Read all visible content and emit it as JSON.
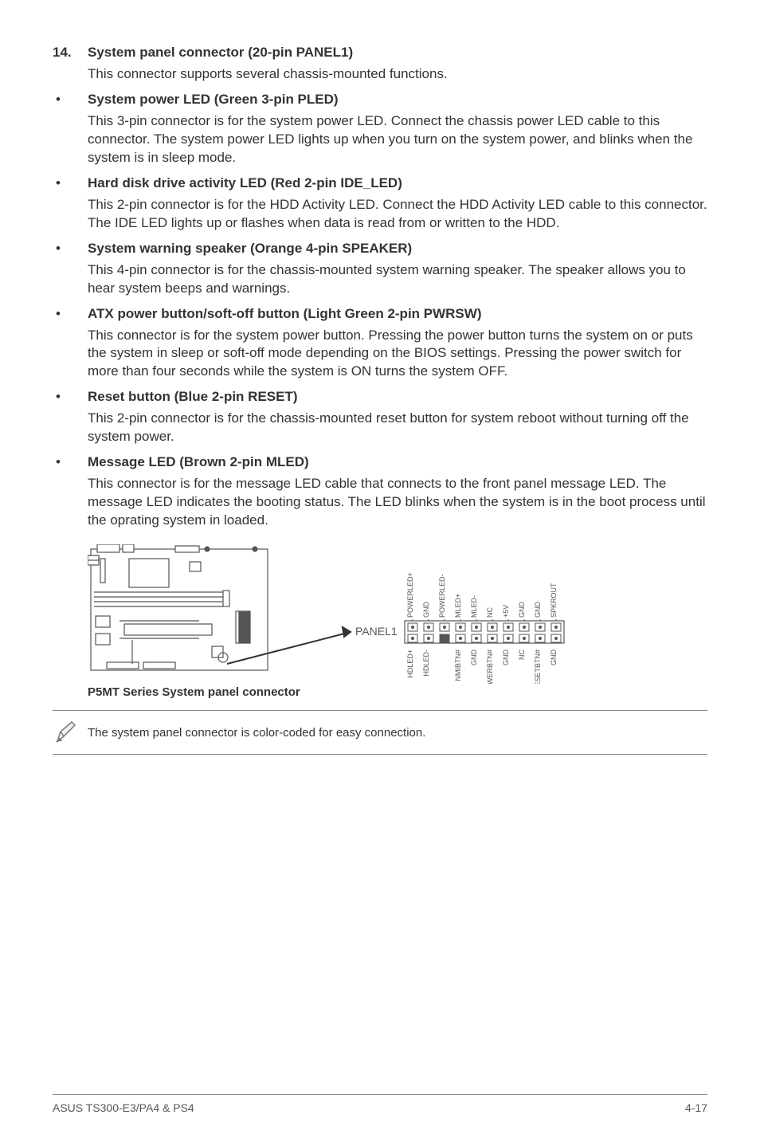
{
  "section": {
    "number": "14.",
    "title": "System panel connector (20-pin PANEL1)",
    "intro": "This connector supports several chassis-mounted functions."
  },
  "bullets": [
    {
      "title": "System power LED (Green 3-pin PLED)",
      "body": "This 3-pin connector is for the system power LED. Connect the chassis power LED cable to this connector. The system power LED lights up when you turn on the system power, and blinks when the system is in sleep mode."
    },
    {
      "title": "Hard disk drive activity LED (Red 2-pin IDE_LED)",
      "body": "This 2-pin connector is for the HDD Activity LED. Connect the HDD Activity LED cable to this connector. The IDE LED lights up or flashes when data is read from or written to the HDD."
    },
    {
      "title": "System warning speaker (Orange 4-pin SPEAKER)",
      "body": "This 4-pin connector is for the chassis-mounted system warning speaker. The speaker allows you to hear system beeps and warnings."
    },
    {
      "title": "ATX power button/soft-off button (Light Green 2-pin PWRSW)",
      "body": "This connector is for the system power button. Pressing the power button turns the system on or puts the system in sleep or soft-off mode depending on the BIOS settings. Pressing the power switch for more than four seconds while the system is ON turns the system OFF."
    },
    {
      "title": "Reset button (Blue 2-pin RESET)",
      "body": "This 2-pin connector is for the chassis-mounted reset button for system reboot without turning off the system power."
    },
    {
      "title": "Message LED (Brown 2-pin MLED)",
      "body": "This connector is for the message LED cable that connects to the front panel message LED. The message LED indicates the booting status. The LED blinks when the system is in the boot process until the oprating system in loaded."
    }
  ],
  "diagram": {
    "conn_label": "PANEL1",
    "caption": "P5MT Series System panel connector",
    "top_pins": [
      "POWERLED+",
      "GND",
      "POWERLED-",
      "MLED+",
      "MLED-",
      "NC",
      "+5V",
      "GND",
      "GND",
      "SPKROUT"
    ],
    "bottom_pins": [
      "HDLED+",
      "HDLED-",
      "",
      "NMIBTN#",
      "GND",
      "POWERBTN#",
      "GND",
      "NC",
      "RESETBTN#",
      "GND"
    ],
    "stroke": "#555555",
    "fill_light": "#ffffff",
    "text_color": "#555555"
  },
  "note": {
    "text": "The system panel connector is color-coded for easy connection."
  },
  "footer": {
    "left": "ASUS TS300-E3/PA4 & PS4",
    "right": "4-17"
  }
}
